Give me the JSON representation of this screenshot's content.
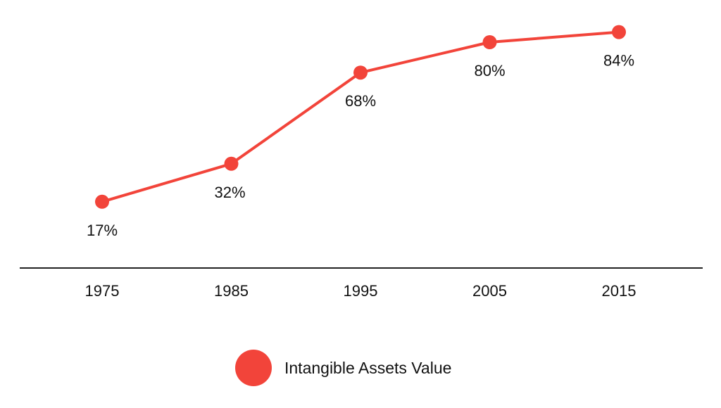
{
  "chart_data": {
    "type": "line",
    "categories": [
      "1975",
      "1985",
      "1995",
      "2005",
      "2015"
    ],
    "series": [
      {
        "name": "Intangible Assets Value",
        "values": [
          17,
          32,
          68,
          80,
          84
        ],
        "labels": [
          "17%",
          "32%",
          "68%",
          "80%",
          "84%"
        ]
      }
    ],
    "ylim": [
      0,
      100
    ],
    "grid": false,
    "legend": "bottom-center",
    "series_color": "#f2443a",
    "axis_color": "#222222"
  }
}
